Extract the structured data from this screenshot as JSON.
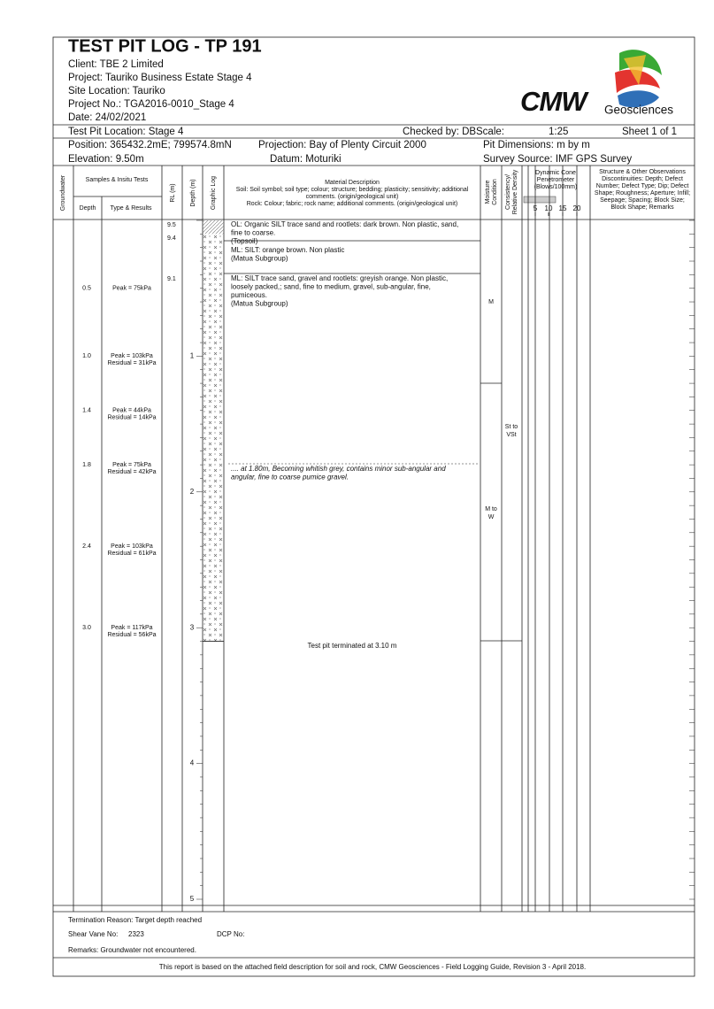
{
  "header": {
    "title": "TEST PIT LOG - TP 191",
    "client": "Client: TBE 2 Limited",
    "project": "Project: Tauriko Business Estate Stage 4",
    "site": "Site Location: Tauriko",
    "project_no": "Project No.: TGA2016-0010_Stage 4",
    "date": "Date: 24/02/2021",
    "location": "Test Pit Location: Stage 4",
    "checked": "Checked by: DB",
    "scale_label": "Scale:",
    "scale": "1:25",
    "sheet": "Sheet 1 of 1",
    "position": "Position: 365432.2mE; 799574.8mN",
    "projection": "Projection: Bay of Plenty Circuit 2000",
    "pit_dimensions": "Pit Dimensions: m by m",
    "elevation": "Elevation: 9.50m",
    "datum": "Datum: Moturiki",
    "survey": "Survey Source: IMF GPS Survey",
    "logo": "CMW",
    "logo_sub": "Geosciences"
  },
  "columns": {
    "groundwater": "Groundwater",
    "samples": "Samples & Insitu Tests",
    "depth": "Depth",
    "type": "Type & Results",
    "rl": "RL (m)",
    "depth_m": "Depth (m)",
    "graphic": "Graphic Log",
    "material": [
      "Material Description",
      "Soil: Soil symbol; soil type; colour; structure; bedding; plasticity; sensitivity; additional",
      "comments. (origin/geological unit)",
      "Rock: Colour; fabric; rock name; additional comments. (origin/geological unit)"
    ],
    "moisture": [
      "Moisture",
      "Condition"
    ],
    "consistency": [
      "Consistency/",
      "Relative Density"
    ],
    "dcp": [
      "Dynamic Cone",
      "Penetrometer",
      "(Blows/100mm)"
    ],
    "dcp_ticks": [
      "5",
      "10",
      "15",
      "20"
    ],
    "structure": [
      "Structure & Other Observations",
      "Discontinuities: Depth; Defect",
      "Number; Defect Type; Dip; Defect",
      "Shape; Roughness; Aperture; Infill;",
      "Seepage; Spacing; Block Size;",
      "Block Shape; Remarks"
    ]
  },
  "rl_labels": [
    "9.5",
    "9.4",
    "9.1"
  ],
  "depth_labels": [
    "1",
    "2",
    "3",
    "4",
    "5"
  ],
  "samples": [
    {
      "depth": "0.5",
      "result": [
        "Peak = 75kPa"
      ]
    },
    {
      "depth": "1.0",
      "result": [
        "Peak = 103kPa",
        "Residual = 31kPa"
      ]
    },
    {
      "depth": "1.4",
      "result": [
        "Peak = 44kPa",
        "Residual = 14kPa"
      ]
    },
    {
      "depth": "1.8",
      "result": [
        "Peak = 75kPa",
        "Residual = 42kPa"
      ]
    },
    {
      "depth": "2.4",
      "result": [
        "Peak = 103kPa",
        "Residual = 61kPa"
      ]
    },
    {
      "depth": "3.0",
      "result": [
        "Peak = 117kPa",
        "Residual = 56kPa"
      ]
    }
  ],
  "layers": [
    [
      "OL: Organic SILT trace sand and rootlets: dark brown. Non plastic, sand,",
      "fine to coarse.",
      "(Topsoil)"
    ],
    [
      "ML: SILT: orange brown. Non plastic",
      "(Matua Subgroup)"
    ],
    [
      "ML: SILT trace sand, gravel and rootlets: greyish orange. Non plastic,",
      "loosely packed,; sand, fine to medium, gravel, sub-angular, fine,",
      "pumiceous.",
      "(Matua Subgroup)"
    ]
  ],
  "note": [
    ".... at 1.80m, Becoming whitish grey, contains minor sub-angular and",
    "angular, fine to coarse pumice gravel."
  ],
  "termination": "Test pit terminated at 3.10 m",
  "moisture": [
    [
      "M"
    ],
    [
      "M to",
      "W"
    ]
  ],
  "consistency": [
    "St to",
    "VSt"
  ],
  "footer": {
    "reason": "Termination Reason: Target depth reached",
    "shear_vane": "Shear Vane No:",
    "shear_vane_no": "2323",
    "dcp_no": "DCP No:",
    "remarks": "Remarks: Groundwater not encountered.",
    "basis": "This report is based on the attached field description for soil and rock, CMW Geosciences - Field Logging Guide, Revision 3 - April 2018."
  }
}
